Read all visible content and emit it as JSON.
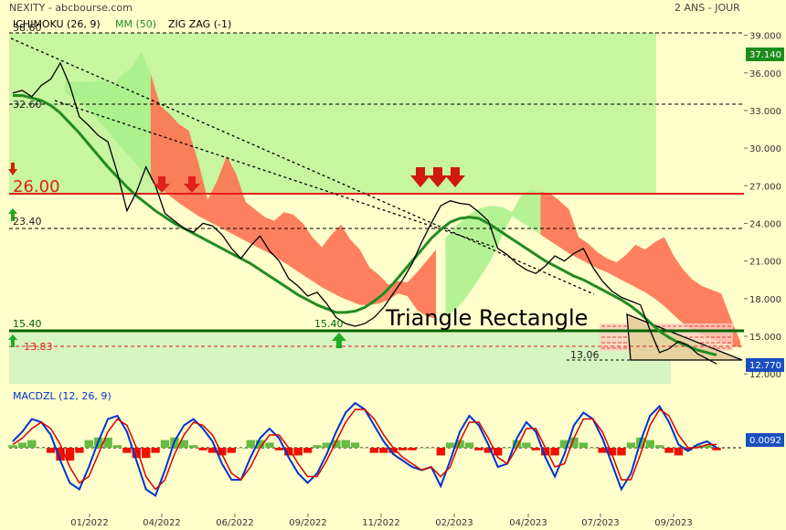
{
  "header": {
    "ticker": "NEXITY - abcbourse.com",
    "period": "2 ANS - JOUR"
  },
  "legend": {
    "ichimoku": "ICHIMOKU (26, 9)",
    "mm": "MM (50)",
    "zigzag": "ZIG ZAG (-1)",
    "macd": "MACDZL (12, 26, 9)"
  },
  "annotations": {
    "pattern": "Triangle Rectangle",
    "level_38": "38.60",
    "level_32": "32.60",
    "level_26": "26.00",
    "level_23": "23.40",
    "level_15": "15.40",
    "level_15_marker": "15.40",
    "level_13": "13.83",
    "level_13_06": "13.06"
  },
  "badges": {
    "price_top": "37.140",
    "price_last": "12.770",
    "macd_last": "0.0092"
  },
  "colors": {
    "price": "#000000",
    "mm50": "#228b22",
    "cloud_bear": "#ff6a4d",
    "cloud_bull": "#a8f08c",
    "support": "#006400",
    "resistance": "#e0201c",
    "macd": "#0033cc",
    "signal": "#dd0000",
    "hist_pos": "#66bb44",
    "hist_neg": "#ee1100"
  },
  "chart_data": [
    {
      "type": "line",
      "name": "price",
      "x_ticks": [
        "01/2022",
        "04/2022",
        "06/2022",
        "09/2022",
        "11/2022",
        "02/2023",
        "04/2023",
        "07/2023",
        "09/2023"
      ],
      "y_ticks": [
        12.0,
        15.0,
        18.0,
        21.0,
        24.0,
        27.0,
        30.0,
        33.0,
        36.0,
        39.0
      ],
      "y_tick_labels": [
        "12.000",
        "15.000",
        "18.000",
        "21.000",
        "24.000",
        "27.000",
        "30.000",
        "33.000",
        "36.000",
        "39.000"
      ],
      "ylim": [
        11.5,
        40.5
      ],
      "close": [
        34.4,
        34.6,
        34.1,
        35.0,
        35.5,
        36.8,
        35.0,
        32.5,
        31.8,
        31.0,
        30.5,
        28.0,
        25.0,
        26.5,
        28.5,
        27.0,
        24.8,
        24.2,
        23.6,
        23.3,
        24.0,
        23.8,
        23.1,
        22.0,
        21.2,
        22.2,
        23.0,
        21.8,
        21.0,
        19.6,
        19.0,
        18.2,
        18.5,
        17.6,
        16.5,
        16.0,
        15.8,
        16.0,
        16.5,
        17.3,
        18.4,
        19.5,
        20.8,
        22.5,
        24.0,
        25.4,
        25.8,
        25.6,
        25.5,
        24.9,
        24.2,
        22.0,
        21.5,
        20.8,
        20.3,
        20.0,
        20.6,
        21.4,
        21.0,
        21.6,
        22.0,
        20.5,
        19.4,
        18.6,
        18.1,
        17.8,
        17.5,
        15.5,
        13.7,
        14.0,
        14.6,
        14.3,
        13.6,
        13.2,
        12.8
      ],
      "mm50": [
        34.2,
        34.2,
        34.0,
        33.8,
        33.4,
        32.8,
        32.0,
        31.2,
        30.3,
        29.4,
        28.5,
        27.7,
        26.9,
        26.2,
        25.6,
        25.0,
        24.5,
        24.0,
        23.6,
        23.2,
        22.8,
        22.4,
        22.0,
        21.6,
        21.2,
        20.8,
        20.3,
        19.8,
        19.3,
        18.8,
        18.3,
        17.9,
        17.5,
        17.2,
        16.9,
        16.9,
        17.0,
        17.3,
        17.8,
        18.4,
        19.2,
        20.1,
        21.0,
        21.9,
        22.8,
        23.5,
        24.1,
        24.4,
        24.5,
        24.4,
        24.0,
        23.5,
        23.0,
        22.5,
        22.0,
        21.5,
        21.0,
        20.6,
        20.2,
        19.8,
        19.5,
        19.1,
        18.7,
        18.3,
        17.9,
        17.4,
        16.8,
        16.1,
        15.4,
        14.9,
        14.5,
        14.2,
        13.9,
        13.7,
        13.5
      ]
    },
    {
      "type": "bar",
      "name": "MACDZL (12, 26, 9)",
      "ylim": [
        -1.6,
        1.6
      ],
      "macd": [
        0.2,
        0.5,
        0.9,
        0.8,
        0.4,
        -0.4,
        -1.1,
        -1.3,
        -0.6,
        0.2,
        0.9,
        1.0,
        0.5,
        -0.4,
        -1.3,
        -1.5,
        -0.7,
        0.2,
        0.7,
        0.9,
        0.6,
        0.2,
        -0.5,
        -1.0,
        -1.0,
        -0.3,
        0.3,
        0.6,
        0.3,
        -0.3,
        -0.8,
        -1.1,
        -0.8,
        -0.2,
        0.5,
        1.1,
        1.4,
        1.2,
        0.7,
        0.2,
        -0.2,
        -0.4,
        -0.6,
        -0.7,
        -0.6,
        -1.2,
        -0.4,
        0.5,
        1.0,
        0.7,
        0.1,
        -0.6,
        -0.5,
        0.3,
        0.8,
        0.5,
        -0.3,
        -0.9,
        -0.2,
        0.7,
        1.1,
        0.9,
        0.3,
        -0.5,
        -1.3,
        -0.8,
        0.2,
        1.0,
        1.3,
        0.8,
        0.1,
        -0.1,
        0.1,
        0.2,
        0.0
      ],
      "signal": [
        0.1,
        0.3,
        0.6,
        0.8,
        0.6,
        0.1,
        -0.6,
        -1.1,
        -0.9,
        -0.2,
        0.5,
        0.9,
        0.7,
        0.0,
        -0.9,
        -1.3,
        -1.0,
        -0.2,
        0.4,
        0.8,
        0.7,
        0.4,
        -0.2,
        -0.8,
        -1.0,
        -0.6,
        0.0,
        0.4,
        0.4,
        0.0,
        -0.5,
        -0.9,
        -0.9,
        -0.4,
        0.2,
        0.8,
        1.2,
        1.2,
        0.9,
        0.4,
        0.0,
        -0.3,
        -0.5,
        -0.7,
        -0.6,
        -0.9,
        -0.6,
        0.2,
        0.8,
        0.8,
        0.3,
        -0.3,
        -0.5,
        0.0,
        0.6,
        0.6,
        0.0,
        -0.6,
        -0.5,
        0.3,
        0.9,
        0.9,
        0.5,
        -0.2,
        -1.0,
        -1.0,
        -0.2,
        0.7,
        1.2,
        1.0,
        0.4,
        0.0,
        0.0,
        0.1,
        0.1
      ]
    }
  ]
}
